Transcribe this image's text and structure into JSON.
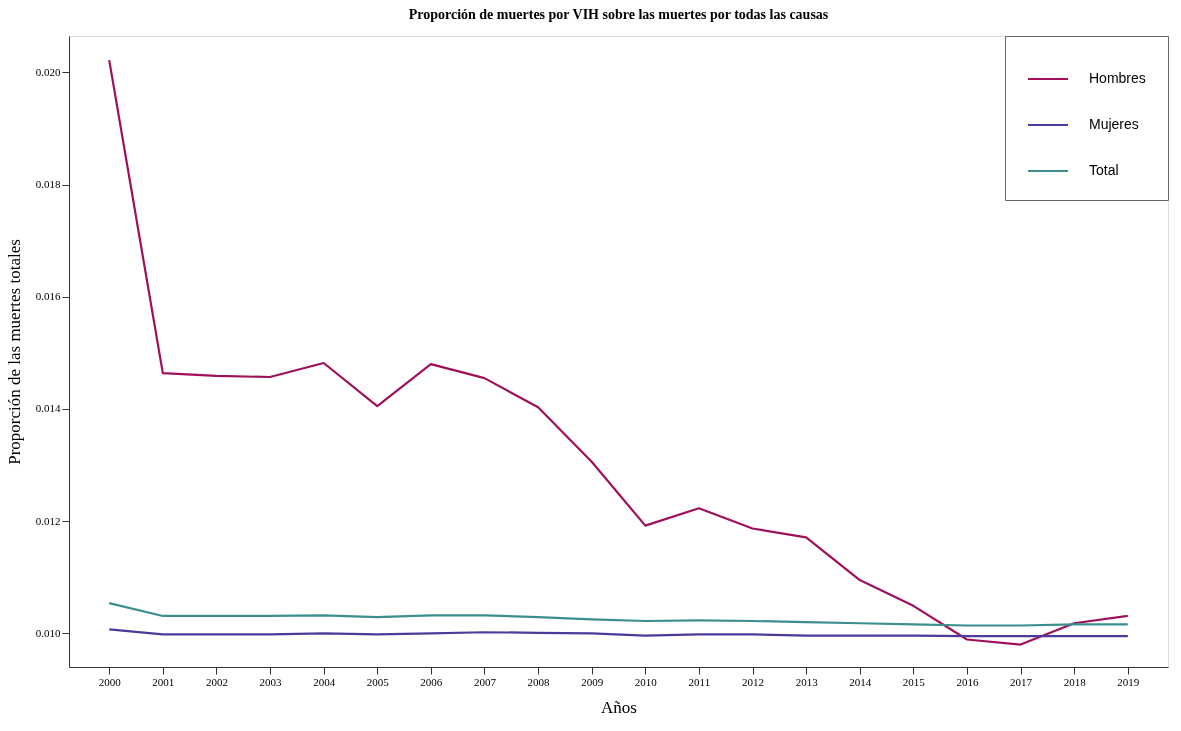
{
  "chart_data": {
    "type": "line",
    "title": "Proporción de muertes por VIH sobre las muertes por todas las causas",
    "xlabel": "Años",
    "ylabel": "Proporción de las muertes totales",
    "categories": [
      "2000",
      "2001",
      "2002",
      "2003",
      "2004",
      "2005",
      "2006",
      "2007",
      "2008",
      "2009",
      "2010",
      "2011",
      "2012",
      "2013",
      "2014",
      "2015",
      "2016",
      "2017",
      "2018",
      "2019"
    ],
    "series": [
      {
        "name": "Hombres",
        "color": "#a0105a",
        "values": [
          0.02022,
          0.01464,
          0.01459,
          0.01457,
          0.01482,
          0.01405,
          0.0148,
          0.01455,
          0.01403,
          0.01306,
          0.01192,
          0.01223,
          0.01187,
          0.01171,
          0.01095,
          0.01049,
          0.00989,
          0.0098,
          0.01018,
          0.01031
        ]
      },
      {
        "name": "Mujeres",
        "color": "#4b3c9c",
        "values": [
          0.01007,
          0.00998,
          0.00998,
          0.00998,
          0.01,
          0.00998,
          0.01,
          0.01002,
          0.01001,
          0.01,
          0.00996,
          0.00998,
          0.00998,
          0.00996,
          0.00996,
          0.00996,
          0.00995,
          0.00995,
          0.00995,
          0.00995
        ]
      },
      {
        "name": "Total",
        "color": "#3d8f8f",
        "values": [
          0.01054,
          0.01031,
          0.01031,
          0.01031,
          0.01032,
          0.01029,
          0.01032,
          0.01032,
          0.01029,
          0.01025,
          0.01022,
          0.01023,
          0.01022,
          0.0102,
          0.01018,
          0.01016,
          0.01014,
          0.01014,
          0.01016,
          0.01016
        ]
      }
    ],
    "ylim": [
      0.0094,
      0.02065
    ],
    "yticks": [
      {
        "value": 0.01,
        "label": "0.010"
      },
      {
        "value": 0.012,
        "label": "0.012"
      },
      {
        "value": 0.014,
        "label": "0.014"
      },
      {
        "value": 0.016,
        "label": "0.016"
      },
      {
        "value": 0.018,
        "label": "0.018"
      },
      {
        "value": 0.02,
        "label": "0.020"
      }
    ],
    "legend": "top right",
    "grid": false,
    "line_style": "solid",
    "marker": "none"
  }
}
